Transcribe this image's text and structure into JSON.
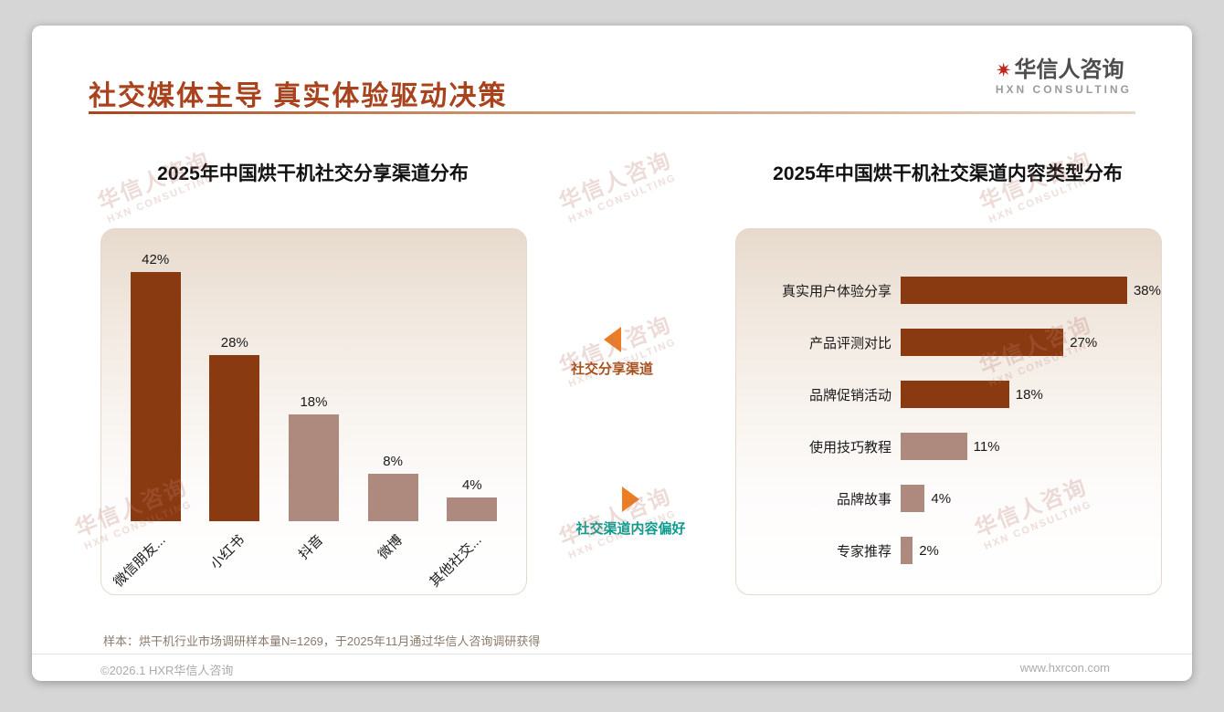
{
  "page": {
    "title": "社交媒体主导 真实体验驱动决策",
    "logo": {
      "cn": "华信人咨询",
      "en": "HXN CONSULTING",
      "mark": "✷"
    },
    "footnote": "样本：烘干机行业市场调研样本量N=1269，于2025年11月通过华信人咨询调研获得",
    "footer_left": "©2026.1 HXR华信人咨询",
    "footer_right": "www.hxrcon.com",
    "watermark": {
      "cn": "华信人咨询",
      "en": "HXN CONSULTING"
    }
  },
  "annotations": {
    "left_pointer_label": "社交分享渠道",
    "right_pointer_label": "社交渠道内容偏好"
  },
  "colors": {
    "accent_title": "#a8431d",
    "bar_dark": "#8a3a10",
    "bar_light": "#ad8a7d",
    "arrow_orange": "#ed7d23",
    "teal_label": "#0b9c8e"
  },
  "chart_data": [
    {
      "type": "bar",
      "title": "2025年中国烘干机社交分享渠道分布",
      "categories": [
        "微信朋友...",
        "小红书",
        "抖音",
        "微博",
        "其他社交..."
      ],
      "values": [
        42,
        28,
        18,
        8,
        4
      ],
      "unit": "%",
      "colors": [
        "#8a3a10",
        "#8a3a10",
        "#ad8a7d",
        "#ad8a7d",
        "#ad8a7d"
      ],
      "ylim": [
        0,
        45
      ],
      "grid": false,
      "legend": "none"
    },
    {
      "type": "bar",
      "orientation": "horizontal",
      "title": "2025年中国烘干机社交渠道内容类型分布",
      "categories": [
        "真实用户体验分享",
        "产品评测对比",
        "品牌促销活动",
        "使用技巧教程",
        "品牌故事",
        "专家推荐"
      ],
      "values": [
        38,
        27,
        18,
        11,
        4,
        2
      ],
      "unit": "%",
      "colors": [
        "#8a3a10",
        "#8a3a10",
        "#8a3a10",
        "#ad8a7d",
        "#ad8a7d",
        "#ad8a7d"
      ],
      "xlim": [
        0,
        40
      ],
      "grid": false,
      "legend": "none"
    }
  ]
}
